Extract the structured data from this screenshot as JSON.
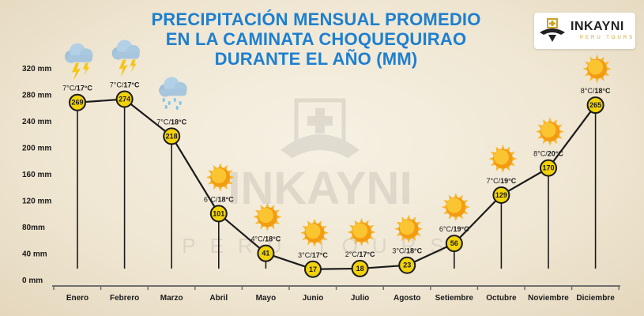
{
  "title_lines": [
    "PRECIPITACIÓN MENSUAL PROMEDIO",
    "EN LA CAMINATA CHOQUEQUIRAO",
    "DURANTE EL AÑO (MM)"
  ],
  "logo": {
    "name": "INKAYNI",
    "sub": "PERU TOURS"
  },
  "watermark": {
    "name": "INKAYNI",
    "sub": "PERU TOURS"
  },
  "colors": {
    "title": "#1e7fd0",
    "line": "#1b1b1b",
    "marker": "#f2d20a",
    "sun": "#f5a623"
  },
  "chart_data": {
    "type": "line",
    "title": "PRECIPITACIÓN MENSUAL PROMEDIO EN LA CAMINATA CHOQUEQUIRAO DURANTE EL AÑO (MM)",
    "categories": [
      "Enero",
      "Febrero",
      "Marzo",
      "Abril",
      "Mayo",
      "Junio",
      "Julio",
      "Agosto",
      "Setiembre",
      "Octubre",
      "Noviembre",
      "Diciembre"
    ],
    "values": [
      269,
      274,
      218,
      101,
      41,
      17,
      18,
      23,
      56,
      129,
      170,
      265
    ],
    "temps_min": [
      "7°C",
      "7°C",
      "7°C",
      "6°C",
      "4°C",
      "3°C",
      "2°C",
      "3°C",
      "6°C",
      "7°C",
      "8°C",
      "8°C"
    ],
    "temps_max": [
      "17°C",
      "17°C",
      "18°C",
      "18°C",
      "18°C",
      "17°C",
      "17°C",
      "18°C",
      "19°C",
      "19°C",
      "20°C",
      "18°C"
    ],
    "weather_icons": [
      "storm-cloud-icon",
      "storm-cloud-icon",
      "rain-cloud-icon",
      "sun-icon",
      "sun-icon",
      "sun-icon",
      "sun-icon",
      "sun-icon",
      "sun-icon",
      "sun-icon",
      "sun-icon",
      "sun-icon"
    ],
    "yticks": [
      "0 mm",
      "40 mm",
      "80mm",
      "120 mm",
      "160 mm",
      "200 mm",
      "240 mm",
      "280 mm",
      "320 mm"
    ],
    "ylim": [
      0,
      320
    ],
    "xlabel": "",
    "ylabel": "",
    "grid": false,
    "legend": "none"
  }
}
